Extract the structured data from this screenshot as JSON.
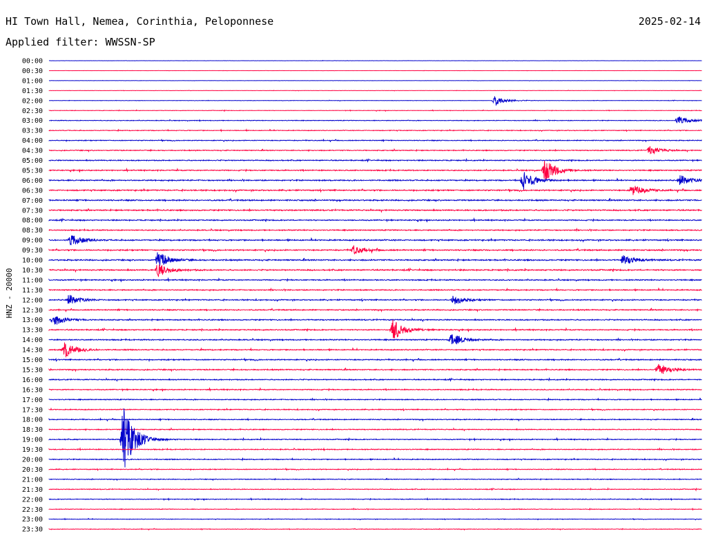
{
  "header": {
    "station": "HI Town Hall, Nemea, Corinthia, Peloponnese",
    "date": "2025-02-14",
    "filter_line": "Applied filter: WWSSN-SP"
  },
  "chart_data": {
    "type": "line",
    "title": "HI Town Hall, Nemea, Corinthia, Peloponnese",
    "ylabel": "HNZ - 20000",
    "xlabel": "",
    "row_labels": [
      "00:00",
      "00:30",
      "01:00",
      "01:30",
      "02:00",
      "02:30",
      "03:00",
      "03:30",
      "04:00",
      "04:30",
      "05:00",
      "05:30",
      "06:00",
      "06:30",
      "07:00",
      "07:30",
      "08:00",
      "08:30",
      "09:00",
      "09:30",
      "10:00",
      "10:30",
      "11:00",
      "11:30",
      "12:00",
      "12:30",
      "13:00",
      "13:30",
      "14:00",
      "14:30",
      "15:00",
      "15:30",
      "16:00",
      "16:30",
      "17:00",
      "17:30",
      "18:00",
      "18:30",
      "19:00",
      "19:30",
      "20:00",
      "20:30",
      "21:00",
      "21:30",
      "22:00",
      "22:30",
      "23:00",
      "23:30"
    ],
    "trace_colors": [
      "#0000cc",
      "#ff0040"
    ],
    "noise_level": [
      0.1,
      0.1,
      0.1,
      0.15,
      0.2,
      0.25,
      0.35,
      0.4,
      0.45,
      0.5,
      0.55,
      0.6,
      0.65,
      0.7,
      0.7,
      0.7,
      0.6,
      0.6,
      0.7,
      0.7,
      0.7,
      0.7,
      0.6,
      0.6,
      0.6,
      0.6,
      0.6,
      0.6,
      0.6,
      0.6,
      0.6,
      0.6,
      0.55,
      0.55,
      0.5,
      0.5,
      0.5,
      0.5,
      0.5,
      0.5,
      0.5,
      0.45,
      0.4,
      0.4,
      0.4,
      0.35,
      0.3,
      0.3
    ],
    "events": [
      {
        "row": 4,
        "minute": 20.5,
        "amplitude": 7
      },
      {
        "row": 6,
        "minute": 28.9,
        "amplitude": 6
      },
      {
        "row": 9,
        "minute": 27.6,
        "amplitude": 6
      },
      {
        "row": 11,
        "minute": 22.8,
        "amplitude": 18
      },
      {
        "row": 12,
        "minute": 21.8,
        "amplitude": 14
      },
      {
        "row": 12,
        "minute": 29.0,
        "amplitude": 8
      },
      {
        "row": 13,
        "minute": 26.8,
        "amplitude": 8
      },
      {
        "row": 18,
        "minute": 1.0,
        "amplitude": 8
      },
      {
        "row": 19,
        "minute": 14.0,
        "amplitude": 6
      },
      {
        "row": 20,
        "minute": 5.0,
        "amplitude": 12
      },
      {
        "row": 20,
        "minute": 26.4,
        "amplitude": 8
      },
      {
        "row": 21,
        "minute": 5.0,
        "amplitude": 10
      },
      {
        "row": 24,
        "minute": 0.9,
        "amplitude": 8
      },
      {
        "row": 24,
        "minute": 18.6,
        "amplitude": 7
      },
      {
        "row": 26,
        "minute": 0.2,
        "amplitude": 9
      },
      {
        "row": 27,
        "minute": 15.8,
        "amplitude": 16
      },
      {
        "row": 28,
        "minute": 18.5,
        "amplitude": 10
      },
      {
        "row": 29,
        "minute": 0.7,
        "amplitude": 12
      },
      {
        "row": 31,
        "minute": 28.0,
        "amplitude": 9
      },
      {
        "row": 38,
        "minute": 3.4,
        "amplitude": 50
      }
    ]
  }
}
